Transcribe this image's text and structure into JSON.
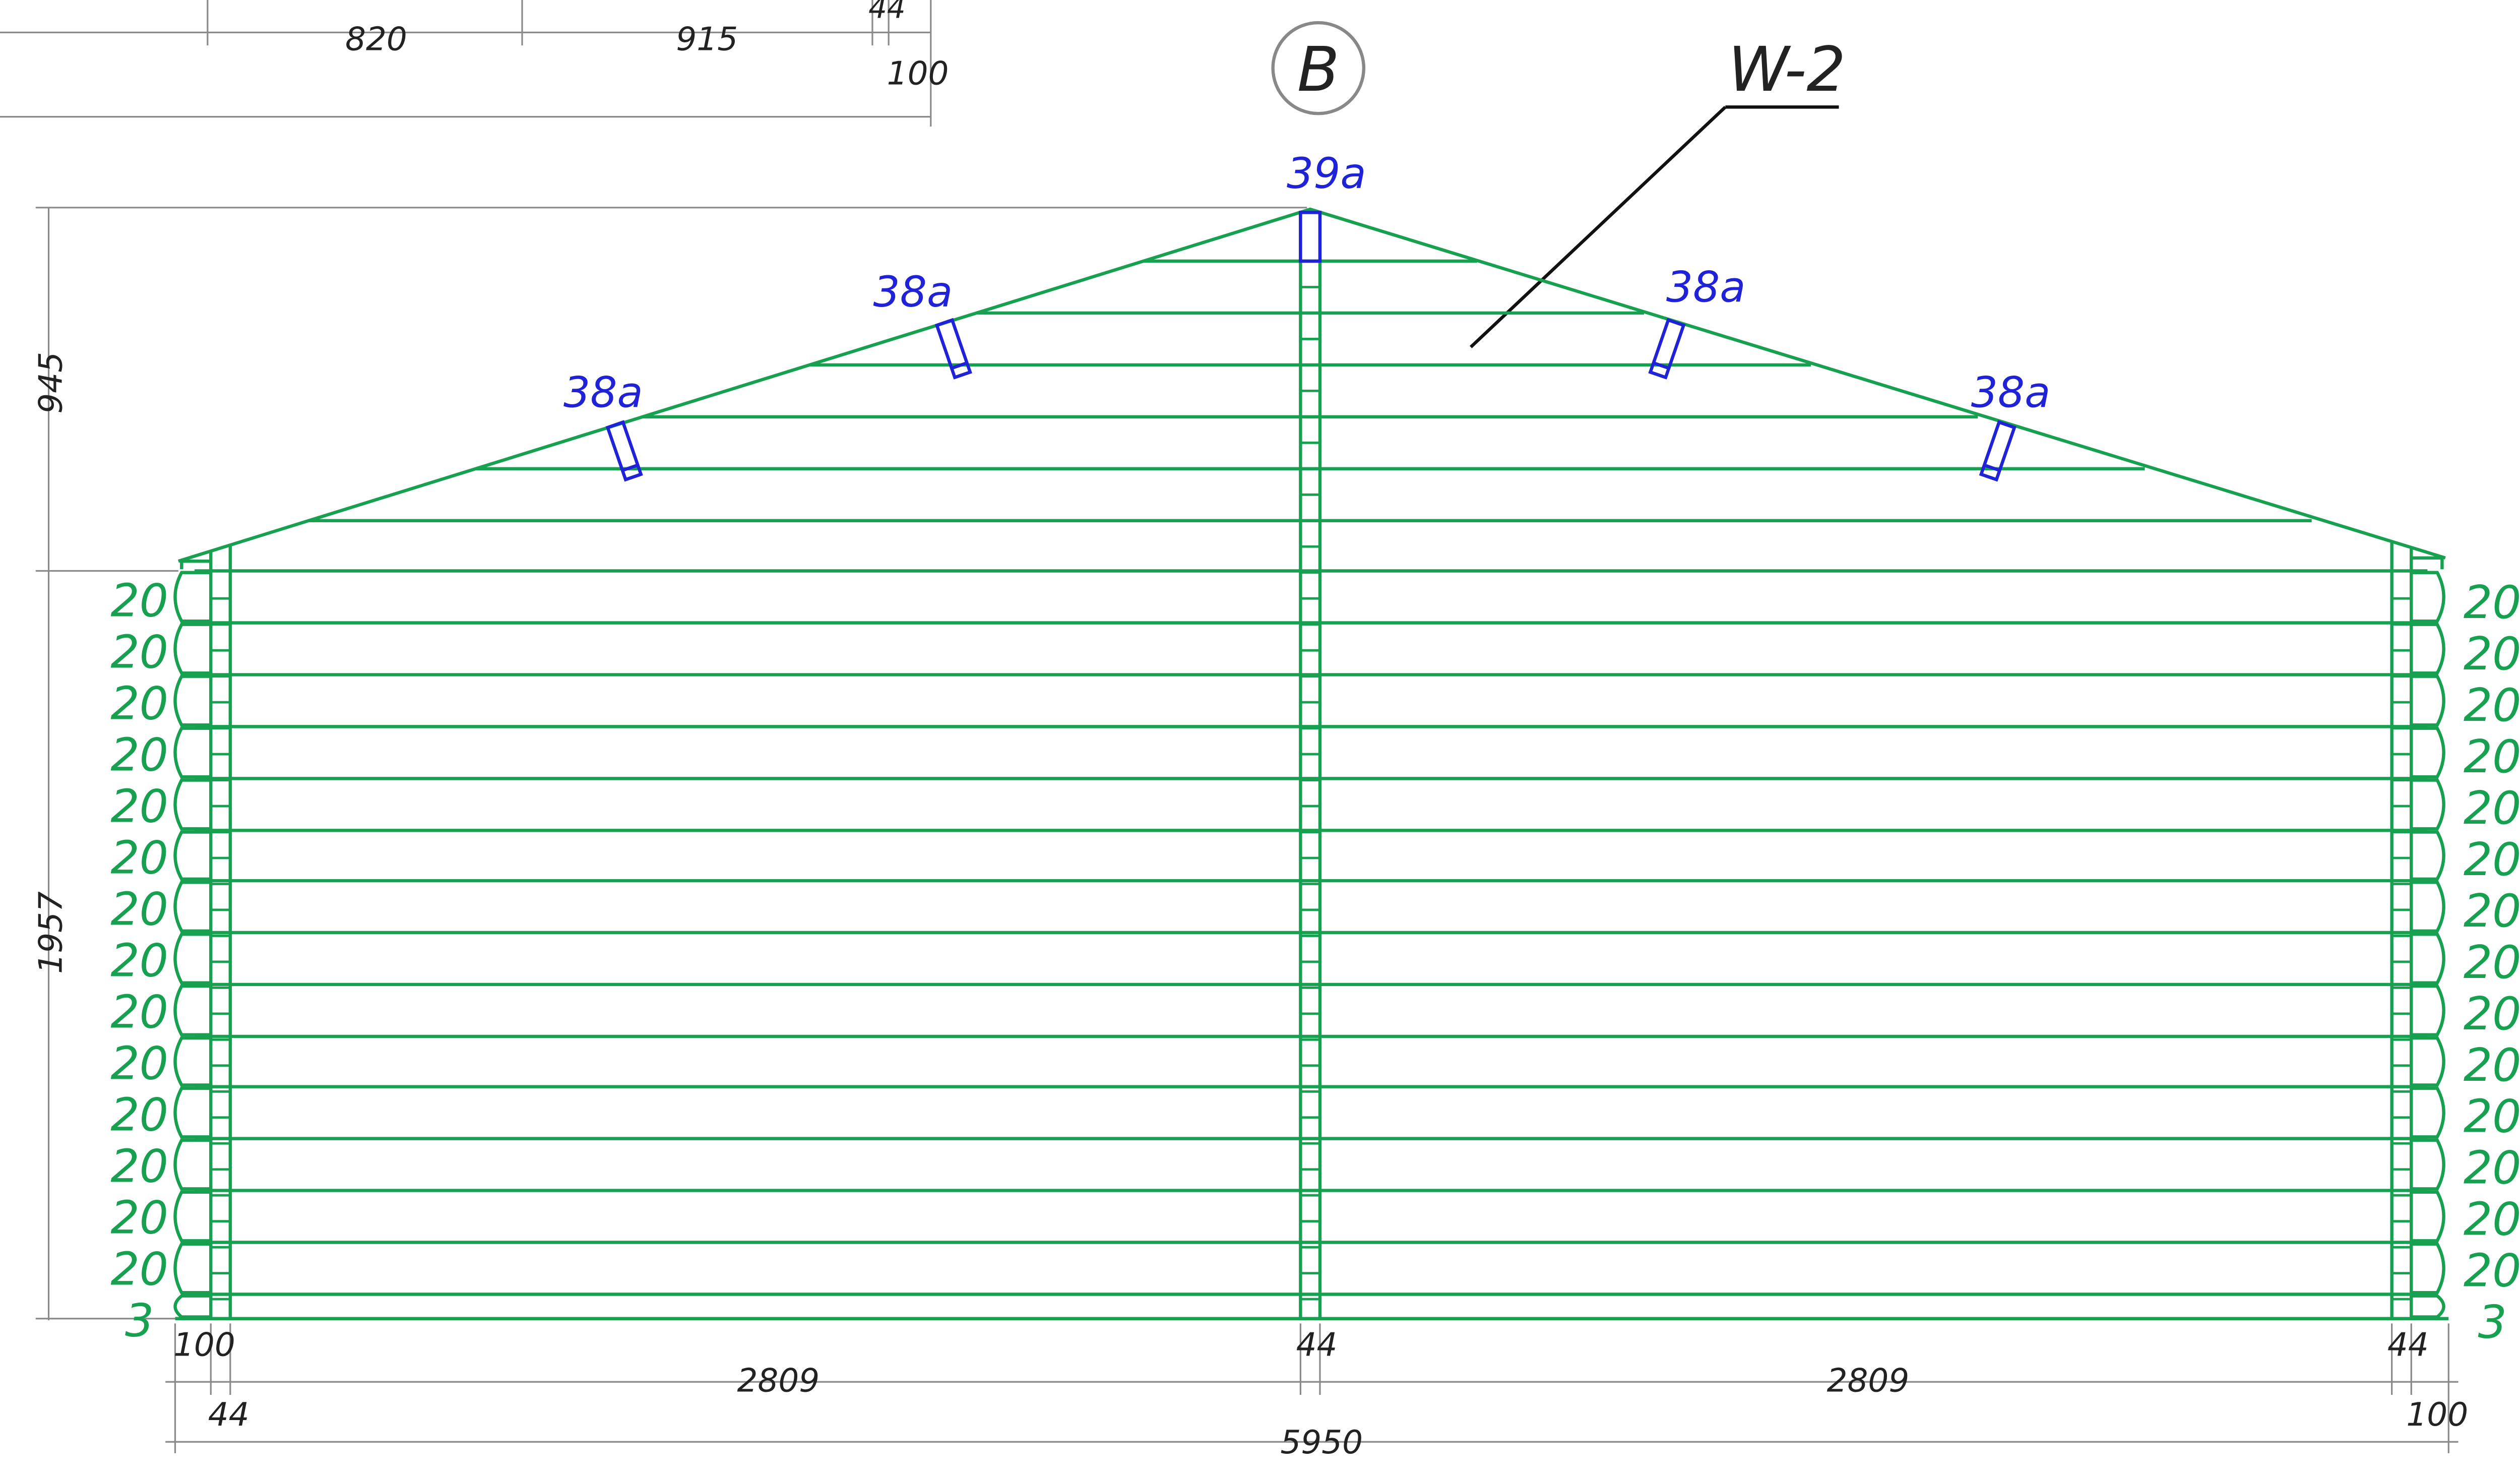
{
  "colors": {
    "wall": "#16a050",
    "rafter": "#1f22d6",
    "dimension": "#8a8a8a",
    "text": "#222222",
    "axis_circle": "#888888"
  },
  "axis_label": "B",
  "wall_label": "W-2",
  "top_dims": {
    "d1": "820",
    "d2": "915",
    "d3": "44",
    "d4": "100"
  },
  "left_dims": {
    "gable_height": "945",
    "wall_height": "1957"
  },
  "courses": {
    "left": [
      "20",
      "20",
      "20",
      "20",
      "20",
      "20",
      "20",
      "20",
      "20",
      "20",
      "20",
      "20",
      "20",
      "20",
      "3"
    ],
    "right": [
      "20",
      "20",
      "20",
      "20",
      "20",
      "20",
      "20",
      "20",
      "20",
      "20",
      "20",
      "20",
      "20",
      "20",
      "3"
    ]
  },
  "rafters": {
    "ridge": "39a",
    "left_upper": "38a",
    "left_lower": "38a",
    "right_upper": "38a",
    "right_lower": "38a"
  },
  "bottom_dims": {
    "left_overhang": "100",
    "left_wall": "44",
    "left_span": "2809",
    "center_wall": "44",
    "right_span": "2809",
    "right_wall": "44",
    "right_overhang": "100",
    "total": "5950"
  }
}
